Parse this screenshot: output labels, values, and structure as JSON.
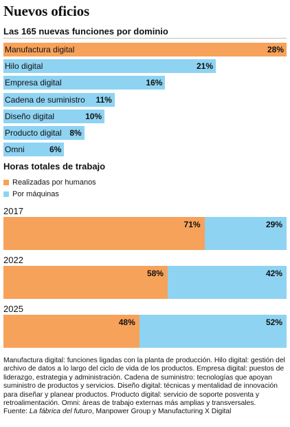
{
  "title": "Nuevos oficios",
  "subtitle": "Las 165 nuevas funciones por dominio",
  "section2_title": "Horas totales de trabajo",
  "colors": {
    "orange": "#f7a25a",
    "blue": "#8fd3f2"
  },
  "legend": [
    {
      "label": "Realizadas por humanos",
      "color": "#f7a25a"
    },
    {
      "label": "Por máquinas",
      "color": "#8fd3f2"
    }
  ],
  "chart_data": [
    {
      "type": "bar",
      "orientation": "horizontal",
      "title": "Las 165 nuevas funciones por dominio",
      "unit": "%",
      "categories": [
        "Manufactura digital",
        "Hilo digital",
        "Empresa digital",
        "Cadena de suministro",
        "Diseño digital",
        "Producto digital",
        "Omni"
      ],
      "values": [
        28,
        21,
        16,
        11,
        10,
        8,
        6
      ],
      "value_labels": [
        "28%",
        "21%",
        "16%",
        "11%",
        "10%",
        "8%",
        "6%"
      ],
      "color": "#f7a25a"
    },
    {
      "type": "bar",
      "orientation": "horizontal",
      "stacked": true,
      "title": "Horas totales de trabajo",
      "unit": "%",
      "categories": [
        "2017",
        "2022",
        "2025"
      ],
      "series": [
        {
          "name": "Realizadas por humanos",
          "values": [
            71,
            58,
            48
          ],
          "labels": [
            "71%",
            "58%",
            "48%"
          ],
          "color": "#f7a25a"
        },
        {
          "name": "Por máquinas",
          "values": [
            29,
            42,
            52
          ],
          "labels": [
            "29%",
            "42%",
            "52%"
          ],
          "color": "#8fd3f2"
        }
      ]
    }
  ],
  "footnote": {
    "text": "Manufactura digital: funciones ligadas con la planta de producción. Hilo digital: gestión del archivo de datos a lo largo del ciclo de vida de los productos. Empresa digital: puestos de liderazgo, estrategia y administración. Cadena de suministro: tecnologías que apoyan suministro de productos y servicios. Diseño digital: técnicas y mentalidad de innovación para diseñar y planear productos. Producto digital: servicio de soporte posventa y retroalimentación. Omni: áreas de trabajo externas más amplias y transversales.",
    "source_prefix": "Fuente: ",
    "source_title": "La fábrica del futuro",
    "source_suffix": ", Manpower Group y Manufacturing X Digital"
  }
}
